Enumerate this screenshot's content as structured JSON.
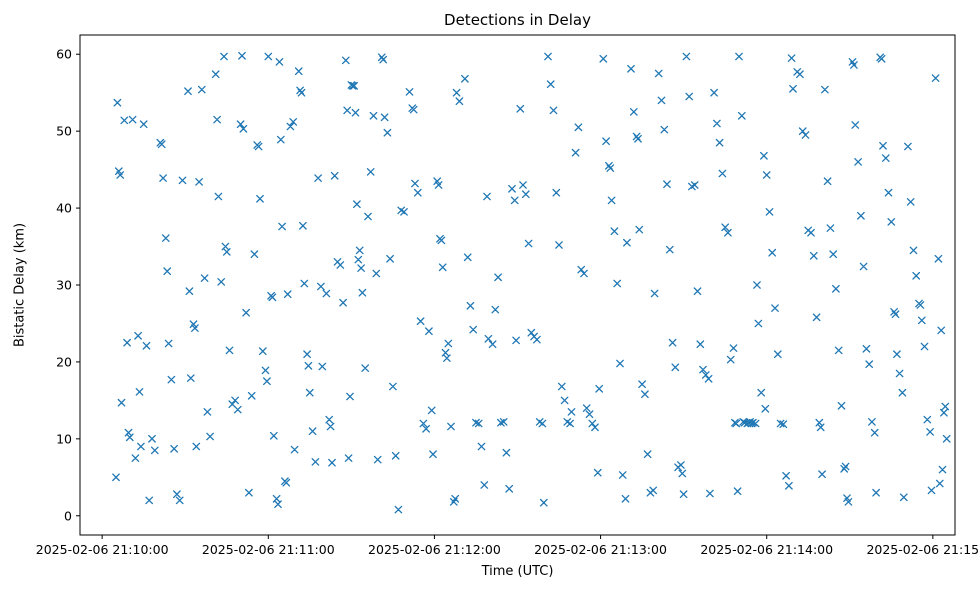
{
  "chart_data": {
    "type": "scatter",
    "title": "Detections in Delay",
    "xlabel": "Time (UTC)",
    "ylabel": "Bistatic Delay (km)",
    "marker": "x",
    "marker_color": "#1f77b4",
    "x_unit": "seconds after 2025-02-06 21:10:00 UTC",
    "xlim": [
      -8,
      308
    ],
    "ylim": [
      -2.5,
      62.5
    ],
    "xticks": [
      0,
      60,
      120,
      180,
      240,
      300
    ],
    "xtick_labels": [
      "2025-02-06 21:10:00",
      "2025-02-06 21:11:00",
      "2025-02-06 21:12:00",
      "2025-02-06 21:13:00",
      "2025-02-06 21:14:00",
      "2025-02-06 21:15:00"
    ],
    "yticks": [
      0,
      10,
      20,
      30,
      40,
      50,
      60
    ],
    "ytick_labels": [
      "0",
      "10",
      "20",
      "30",
      "40",
      "50",
      "60"
    ],
    "grid": false,
    "legend": null,
    "points": [
      [
        5.5,
        53.7
      ],
      [
        6,
        44.8
      ],
      [
        6.5,
        44.3
      ],
      [
        5,
        5.0
      ],
      [
        8,
        51.4
      ],
      [
        9,
        22.5
      ],
      [
        7,
        14.7
      ],
      [
        9.5,
        10.8
      ],
      [
        10,
        10.2
      ],
      [
        11,
        51.5
      ],
      [
        12,
        7.5
      ],
      [
        13,
        23.4
      ],
      [
        13.5,
        16.1
      ],
      [
        14,
        9.0
      ],
      [
        15,
        50.9
      ],
      [
        16,
        22.1
      ],
      [
        17,
        2.0
      ],
      [
        18,
        10.0
      ],
      [
        19,
        8.5
      ],
      [
        21,
        48.5
      ],
      [
        21.5,
        48.3
      ],
      [
        22,
        43.9
      ],
      [
        23,
        36.1
      ],
      [
        23.5,
        31.8
      ],
      [
        24,
        22.4
      ],
      [
        25,
        17.7
      ],
      [
        26,
        8.7
      ],
      [
        27,
        2.8
      ],
      [
        28,
        2.0
      ],
      [
        29,
        43.6
      ],
      [
        31,
        55.2
      ],
      [
        31.5,
        29.2
      ],
      [
        32,
        17.9
      ],
      [
        33,
        24.9
      ],
      [
        33.5,
        24.4
      ],
      [
        34,
        9.0
      ],
      [
        35,
        43.4
      ],
      [
        36,
        55.4
      ],
      [
        37,
        30.9
      ],
      [
        38,
        13.5
      ],
      [
        39,
        10.3
      ],
      [
        41,
        57.4
      ],
      [
        41.5,
        51.5
      ],
      [
        42,
        41.5
      ],
      [
        43,
        30.4
      ],
      [
        44,
        59.7
      ],
      [
        44.5,
        35.0
      ],
      [
        45,
        34.3
      ],
      [
        46,
        21.5
      ],
      [
        47,
        14.5
      ],
      [
        48,
        15.0
      ],
      [
        49,
        13.8
      ],
      [
        50,
        50.9
      ],
      [
        50.5,
        59.8
      ],
      [
        51,
        50.3
      ],
      [
        52,
        26.4
      ],
      [
        53,
        3.0
      ],
      [
        54,
        15.6
      ],
      [
        55,
        34.0
      ],
      [
        56,
        48.2
      ],
      [
        56.5,
        48.0
      ],
      [
        57,
        41.2
      ],
      [
        58,
        21.4
      ],
      [
        59,
        18.9
      ],
      [
        59.5,
        17.5
      ],
      [
        60,
        59.7
      ],
      [
        61,
        28.6
      ],
      [
        61.5,
        28.4
      ],
      [
        62,
        10.4
      ],
      [
        63,
        2.2
      ],
      [
        63.5,
        1.5
      ],
      [
        64,
        59.0
      ],
      [
        64.5,
        48.9
      ],
      [
        65,
        37.6
      ],
      [
        66,
        4.5
      ],
      [
        66.5,
        4.3
      ],
      [
        67,
        28.8
      ],
      [
        68,
        50.6
      ],
      [
        69,
        51.2
      ],
      [
        69.5,
        8.6
      ],
      [
        71,
        57.8
      ],
      [
        71.5,
        55.3
      ],
      [
        72,
        55.0
      ],
      [
        72.5,
        37.7
      ],
      [
        73,
        30.2
      ],
      [
        74,
        21.0
      ],
      [
        74.5,
        19.5
      ],
      [
        75,
        16.0
      ],
      [
        76,
        11.0
      ],
      [
        77,
        7.0
      ],
      [
        78,
        43.9
      ],
      [
        79,
        29.8
      ],
      [
        79.5,
        19.4
      ],
      [
        81,
        28.9
      ],
      [
        82,
        12.5
      ],
      [
        82.5,
        11.6
      ],
      [
        83,
        6.9
      ],
      [
        84,
        44.2
      ],
      [
        85,
        33.0
      ],
      [
        86,
        32.6
      ],
      [
        87,
        27.7
      ],
      [
        88,
        59.2
      ],
      [
        88.5,
        52.7
      ],
      [
        89,
        7.5
      ],
      [
        89.5,
        15.5
      ],
      [
        90,
        56.0
      ],
      [
        90.5,
        55.9
      ],
      [
        91,
        55.9
      ],
      [
        91.5,
        52.4
      ],
      [
        92,
        40.5
      ],
      [
        92.5,
        33.3
      ],
      [
        93,
        34.5
      ],
      [
        93.5,
        32.2
      ],
      [
        94,
        29.0
      ],
      [
        95,
        19.2
      ],
      [
        96,
        38.9
      ],
      [
        97,
        44.7
      ],
      [
        98,
        52.0
      ],
      [
        99,
        31.5
      ],
      [
        99.5,
        7.3
      ],
      [
        101,
        59.6
      ],
      [
        101.5,
        59.3
      ],
      [
        102,
        51.8
      ],
      [
        103,
        49.8
      ],
      [
        104,
        33.4
      ],
      [
        105,
        16.8
      ],
      [
        106,
        7.8
      ],
      [
        107,
        0.8
      ],
      [
        108,
        39.7
      ],
      [
        109,
        39.5
      ],
      [
        111,
        55.1
      ],
      [
        112,
        53.0
      ],
      [
        112.5,
        52.8
      ],
      [
        113,
        43.2
      ],
      [
        114,
        42.0
      ],
      [
        115,
        25.3
      ],
      [
        116,
        12.0
      ],
      [
        117,
        11.3
      ],
      [
        118,
        24.0
      ],
      [
        119,
        13.7
      ],
      [
        119.5,
        8.0
      ],
      [
        121,
        43.5
      ],
      [
        121.5,
        43.0
      ],
      [
        122,
        36.0
      ],
      [
        122.5,
        35.8
      ],
      [
        123,
        32.3
      ],
      [
        124,
        21.2
      ],
      [
        124.5,
        20.5
      ],
      [
        125,
        22.4
      ],
      [
        126,
        11.6
      ],
      [
        127,
        1.8
      ],
      [
        127.5,
        2.2
      ],
      [
        128,
        55.0
      ],
      [
        129,
        53.9
      ],
      [
        131,
        56.8
      ],
      [
        132,
        33.6
      ],
      [
        133,
        27.3
      ],
      [
        134,
        24.2
      ],
      [
        135,
        12.1
      ],
      [
        136,
        12.0
      ],
      [
        137,
        9.0
      ],
      [
        138,
        4.0
      ],
      [
        139,
        41.5
      ],
      [
        139.5,
        23.0
      ],
      [
        141,
        22.3
      ],
      [
        142,
        26.8
      ],
      [
        143,
        31.0
      ],
      [
        144,
        12.1
      ],
      [
        145,
        12.2
      ],
      [
        146,
        8.2
      ],
      [
        147,
        3.5
      ],
      [
        148,
        42.5
      ],
      [
        149,
        41.0
      ],
      [
        149.5,
        22.8
      ],
      [
        151,
        52.9
      ],
      [
        152,
        43.0
      ],
      [
        153,
        41.8
      ],
      [
        154,
        35.4
      ],
      [
        155,
        23.8
      ],
      [
        156,
        23.3
      ],
      [
        157,
        22.9
      ],
      [
        158,
        12.2
      ],
      [
        159,
        12.0
      ],
      [
        159.5,
        1.7
      ],
      [
        161,
        59.7
      ],
      [
        162,
        56.1
      ],
      [
        163,
        52.7
      ],
      [
        164,
        42.0
      ],
      [
        165,
        35.2
      ],
      [
        166,
        16.8
      ],
      [
        167,
        15.0
      ],
      [
        168,
        12.2
      ],
      [
        169,
        12.0
      ],
      [
        169.5,
        13.5
      ],
      [
        171,
        47.2
      ],
      [
        172,
        50.5
      ],
      [
        173,
        32.0
      ],
      [
        174,
        31.5
      ],
      [
        175,
        14.0
      ],
      [
        176,
        13.2
      ],
      [
        177,
        12.0
      ],
      [
        178,
        11.5
      ],
      [
        179,
        5.6
      ],
      [
        179.5,
        16.5
      ],
      [
        181,
        59.4
      ],
      [
        182,
        48.7
      ],
      [
        183,
        45.5
      ],
      [
        183.5,
        45.2
      ],
      [
        184,
        41.0
      ],
      [
        185,
        37.0
      ],
      [
        186,
        30.2
      ],
      [
        187,
        19.8
      ],
      [
        188,
        5.3
      ],
      [
        189,
        2.2
      ],
      [
        189.5,
        35.5
      ],
      [
        191,
        58.1
      ],
      [
        192,
        52.5
      ],
      [
        193,
        49.3
      ],
      [
        193.5,
        49.0
      ],
      [
        194,
        37.2
      ],
      [
        195,
        17.1
      ],
      [
        196,
        15.8
      ],
      [
        197,
        8.0
      ],
      [
        198,
        3.0
      ],
      [
        199,
        3.3
      ],
      [
        199.5,
        28.9
      ],
      [
        201,
        57.5
      ],
      [
        202,
        54.0
      ],
      [
        203,
        50.2
      ],
      [
        204,
        43.1
      ],
      [
        205,
        34.6
      ],
      [
        206,
        22.5
      ],
      [
        207,
        19.3
      ],
      [
        208,
        6.3
      ],
      [
        209,
        6.6
      ],
      [
        209.5,
        5.5
      ],
      [
        210,
        2.8
      ],
      [
        211,
        59.7
      ],
      [
        212,
        54.5
      ],
      [
        213,
        42.8
      ],
      [
        214,
        43.0
      ],
      [
        215,
        29.2
      ],
      [
        216,
        22.3
      ],
      [
        217,
        19.0
      ],
      [
        218,
        18.3
      ],
      [
        219,
        17.8
      ],
      [
        219.5,
        2.9
      ],
      [
        221,
        55.0
      ],
      [
        222,
        51.0
      ],
      [
        223,
        48.5
      ],
      [
        224,
        44.5
      ],
      [
        225,
        37.5
      ],
      [
        226,
        36.8
      ],
      [
        227,
        20.3
      ],
      [
        228,
        21.8
      ],
      [
        228.5,
        12.1
      ],
      [
        229,
        12.0
      ],
      [
        229.5,
        3.2
      ],
      [
        230,
        59.7
      ],
      [
        231,
        52.0
      ],
      [
        231.5,
        12.2
      ],
      [
        232,
        12.1
      ],
      [
        233,
        12.0
      ],
      [
        233.5,
        12.1
      ],
      [
        234,
        12.2
      ],
      [
        234.5,
        12.0
      ],
      [
        235,
        12.1
      ],
      [
        236,
        12.0
      ],
      [
        236.5,
        30.0
      ],
      [
        237,
        25.0
      ],
      [
        238,
        16.0
      ],
      [
        239,
        46.8
      ],
      [
        239.5,
        13.9
      ],
      [
        240,
        44.3
      ],
      [
        241,
        39.5
      ],
      [
        242,
        34.2
      ],
      [
        243,
        27.0
      ],
      [
        244,
        21.0
      ],
      [
        245,
        12.0
      ],
      [
        246,
        11.9
      ],
      [
        247,
        5.2
      ],
      [
        248,
        3.9
      ],
      [
        249,
        59.5
      ],
      [
        249.5,
        55.5
      ],
      [
        251,
        57.7
      ],
      [
        252,
        57.4
      ],
      [
        253,
        50.0
      ],
      [
        254,
        49.5
      ],
      [
        255,
        37.1
      ],
      [
        256,
        36.8
      ],
      [
        257,
        33.8
      ],
      [
        258,
        25.8
      ],
      [
        259,
        12.1
      ],
      [
        259.5,
        11.5
      ],
      [
        260,
        5.4
      ],
      [
        261,
        55.4
      ],
      [
        262,
        43.5
      ],
      [
        263,
        37.4
      ],
      [
        264,
        34.0
      ],
      [
        265,
        29.5
      ],
      [
        266,
        21.5
      ],
      [
        267,
        14.3
      ],
      [
        268,
        6.1
      ],
      [
        268.5,
        6.4
      ],
      [
        269,
        2.3
      ],
      [
        269.5,
        1.8
      ],
      [
        271,
        59.0
      ],
      [
        271.5,
        58.6
      ],
      [
        272,
        50.8
      ],
      [
        273,
        46.0
      ],
      [
        274,
        39.0
      ],
      [
        275,
        32.4
      ],
      [
        276,
        21.7
      ],
      [
        277,
        19.7
      ],
      [
        278,
        12.2
      ],
      [
        279,
        10.8
      ],
      [
        279.5,
        3.0
      ],
      [
        281,
        59.6
      ],
      [
        281.5,
        59.4
      ],
      [
        282,
        48.1
      ],
      [
        283,
        46.5
      ],
      [
        284,
        42.0
      ],
      [
        285,
        38.2
      ],
      [
        286,
        26.5
      ],
      [
        286.5,
        26.2
      ],
      [
        287,
        21.0
      ],
      [
        288,
        18.5
      ],
      [
        289,
        16.0
      ],
      [
        289.5,
        2.4
      ],
      [
        291,
        48.0
      ],
      [
        292,
        40.8
      ],
      [
        293,
        34.5
      ],
      [
        294,
        31.2
      ],
      [
        295,
        27.6
      ],
      [
        295.5,
        27.4
      ],
      [
        296,
        25.4
      ],
      [
        297,
        22.0
      ],
      [
        298,
        12.5
      ],
      [
        299,
        10.9
      ],
      [
        299.5,
        3.3
      ],
      [
        301,
        56.9
      ],
      [
        302,
        33.4
      ],
      [
        303,
        24.1
      ],
      [
        304,
        13.4
      ],
      [
        304.5,
        14.2
      ],
      [
        305,
        10.0
      ],
      [
        303.5,
        6.0
      ],
      [
        302.5,
        4.2
      ]
    ]
  }
}
